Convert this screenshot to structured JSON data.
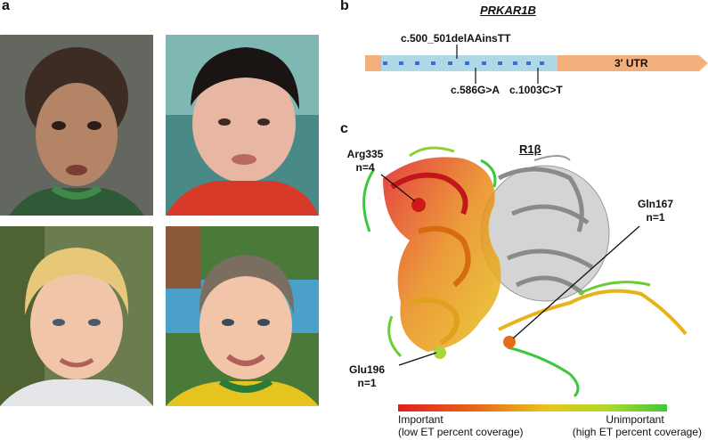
{
  "panels": {
    "a": "a",
    "b": "b",
    "c": "c"
  },
  "panel_b": {
    "gene": "PRKAR1B",
    "utr_label": "3′ UTR",
    "mutations": [
      "c.500_501delAAinsTT",
      "c.586G>A",
      "c.1003C>T"
    ]
  },
  "panel_c": {
    "protein": "R1β",
    "residues": [
      {
        "name": "Arg335",
        "count": "n=4"
      },
      {
        "name": "Gln167",
        "count": "n=1"
      },
      {
        "name": "Glu196",
        "count": "n=1"
      }
    ],
    "scale": {
      "left_title": "Important",
      "left_sub": "(low ET percent coverage)",
      "right_title": "Unimportant",
      "right_sub": "(high ET percent coverage)"
    }
  },
  "colors": {
    "exon": "#aed8e6",
    "utr": "#f4b07c",
    "marker": "#3a6fd0",
    "important": "#e02020",
    "unimportant": "#3cc83c"
  }
}
